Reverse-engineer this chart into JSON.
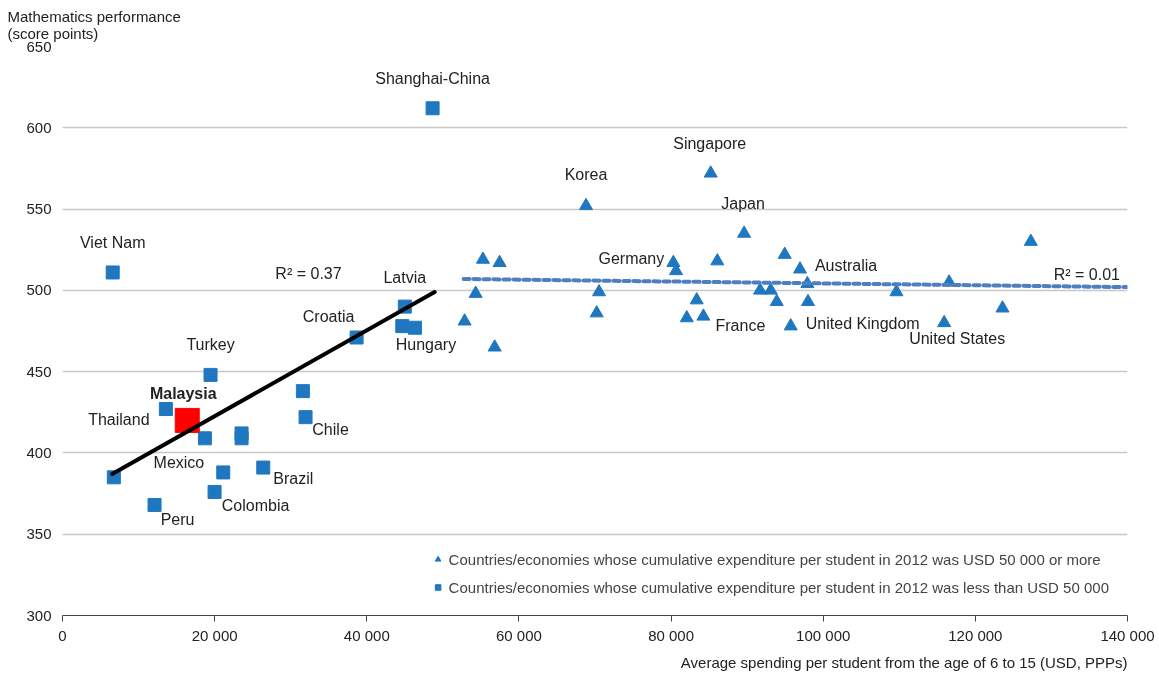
{
  "chart_data": {
    "type": "scatter",
    "ylabel": "Mathematics performance\n(score points)",
    "xlabel": "Average spending per student from the age of 6 to 15 (USD, PPPs)",
    "xlim": [
      0,
      140000
    ],
    "ylim": [
      300,
      650
    ],
    "xticks": [
      {
        "value": 0,
        "label": "0"
      },
      {
        "value": 20000,
        "label": "20 000"
      },
      {
        "value": 40000,
        "label": "40 000"
      },
      {
        "value": 60000,
        "label": "60 000"
      },
      {
        "value": 80000,
        "label": "80 000"
      },
      {
        "value": 100000,
        "label": "100 000"
      },
      {
        "value": 120000,
        "label": "120 000"
      },
      {
        "value": 140000,
        "label": "140 000"
      }
    ],
    "yticks": [
      300,
      350,
      400,
      450,
      500,
      550,
      600,
      650
    ],
    "grid": "y",
    "legend": "bottom right",
    "series": [
      {
        "name": "Countries/economies whose cumulative expenditure per student in 2012 was USD 50 000 or more",
        "color": "#1f77c0",
        "marker": "triangle",
        "x": [
          55270,
          57460,
          54310,
          52860,
          56810,
          68820,
          85210,
          70530,
          70220,
          80300,
          80650,
          86080,
          89600,
          83370,
          82060,
          84250,
          94940,
          96950,
          91700,
          93100,
          93890,
          97920,
          98000,
          95730,
          109630,
          116550,
          115900,
          123570,
          127290
        ],
        "values": [
          519,
          517,
          498,
          481,
          465,
          552,
          572,
          499,
          486,
          517,
          512,
          518,
          535,
          494,
          483,
          484,
          522,
          513,
          500,
          500,
          493,
          504,
          493,
          478,
          499,
          505,
          480,
          489,
          530
        ]
      },
      {
        "name": "Countries/economies whose cumulative expenditure per student in 2012 was less than USD 50 000",
        "color": "#1f77c0",
        "marker": "square",
        "x": [
          6600,
          48650,
          45000,
          44670,
          46330,
          38660,
          19460,
          13590,
          18720,
          23540,
          23540,
          31600,
          31950,
          26390,
          21130,
          19990,
          12100,
          6750
        ],
        "values": [
          511,
          612,
          490,
          478,
          477,
          471,
          448,
          427,
          409,
          412,
          409,
          438,
          422,
          391,
          388,
          376,
          368,
          385
        ]
      },
      {
        "color": "#ff0000",
        "marker": "square",
        "x": [
          16400
        ],
        "values": [
          420
        ]
      },
      {
        "type": "line",
        "color": "#000000",
        "line_style": "solid",
        "x": [
          6530,
          48920
        ],
        "values": [
          387,
          499
        ]
      },
      {
        "type": "line",
        "color": "#4f7fc0",
        "line_style": "dashed",
        "x": [
          52730,
          139900
        ],
        "values": [
          507,
          502
        ]
      }
    ],
    "annotations": [
      {
        "text": "Shanghai-China",
        "x": 48650,
        "y": 612
      },
      {
        "text": "Singapore",
        "x": 85210,
        "y": 572
      },
      {
        "text": "Korea",
        "x": 68820,
        "y": 552
      },
      {
        "text": "Japan",
        "x": 89600,
        "y": 535
      },
      {
        "text": "Viet Nam",
        "x": 6600,
        "y": 511
      },
      {
        "text": "Germany",
        "x": 80300,
        "y": 517
      },
      {
        "text": "Australia",
        "x": 96950,
        "y": 513
      },
      {
        "text": "R² = 0.01",
        "x": 134650,
        "y": 502
      },
      {
        "text": "Latvia",
        "x": 45000,
        "y": 490
      },
      "R² = 0.37",
      {
        "text": "Croatia",
        "x": 38660,
        "y": 471
      },
      {
        "text": "Hungary",
        "x": 46330,
        "y": 477
      },
      {
        "text": "Turkey",
        "x": 19460,
        "y": 448
      },
      {
        "text": "Malaysia",
        "x": 16400,
        "y": 420
      },
      {
        "text": "Thailand",
        "x": 13590,
        "y": 427
      },
      {
        "text": "Chile",
        "x": 31950,
        "y": 422
      },
      {
        "text": "Mexico",
        "x": 18720,
        "y": 409
      },
      {
        "text": "Brazil",
        "x": 26390,
        "y": 391
      },
      {
        "text": "Colombia",
        "x": 19990,
        "y": 376
      },
      {
        "text": "Peru",
        "x": 12100,
        "y": 368
      },
      {
        "text": "France",
        "x": 84250,
        "y": 484
      },
      {
        "text": "United Kingdom",
        "x": 95730,
        "y": 478
      },
      {
        "text": "United States",
        "x": 115900,
        "y": 480
      }
    ]
  }
}
